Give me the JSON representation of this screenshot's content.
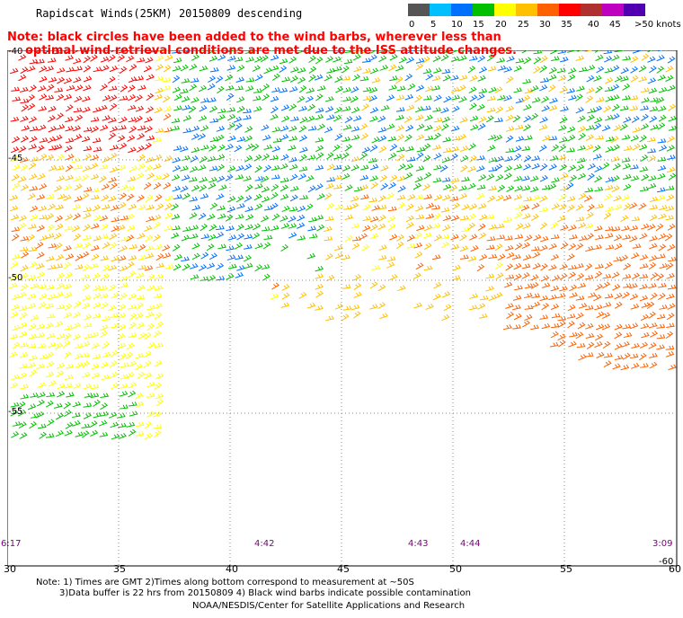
{
  "header": {
    "title": "Rapidscat Winds(25KM) 20150809 descending",
    "note_line1": "Note: black circles have been added to the wind barbs, wherever less than",
    "note_line2": "optimal wind retrieval conditions are met due to the ISS attitude changes."
  },
  "legend": {
    "labels": [
      "0",
      "5",
      "10",
      "15",
      "20",
      "25",
      "30",
      "35",
      "40",
      "45",
      ">50 knots"
    ],
    "colors": [
      "#555555",
      "#00bfff",
      "#0070ff",
      "#00c000",
      "#ffff00",
      "#ffc000",
      "#ff6000",
      "#ff0000",
      "#b03030",
      "#c000c0",
      "#5000b0"
    ]
  },
  "map": {
    "lon_labels": [
      "30",
      "35",
      "40",
      "45",
      "50",
      "55",
      "60"
    ],
    "lat_labels": [
      "-40",
      "-45",
      "-50",
      "-55",
      "-60"
    ],
    "time_labels": [
      "6:17",
      "4:42",
      "4:43",
      "4:44",
      "3:09"
    ]
  },
  "footer": {
    "line1": "Note: 1) Times are GMT 2)Times along bottom correspond to measurement at ~50S",
    "line2": "3)Data buffer is 22 hrs from 20150809 4) Black wind barbs indicate possible contamination",
    "line3": "NOAA/NESDIS/Center for Satellite Applications and Research"
  }
}
